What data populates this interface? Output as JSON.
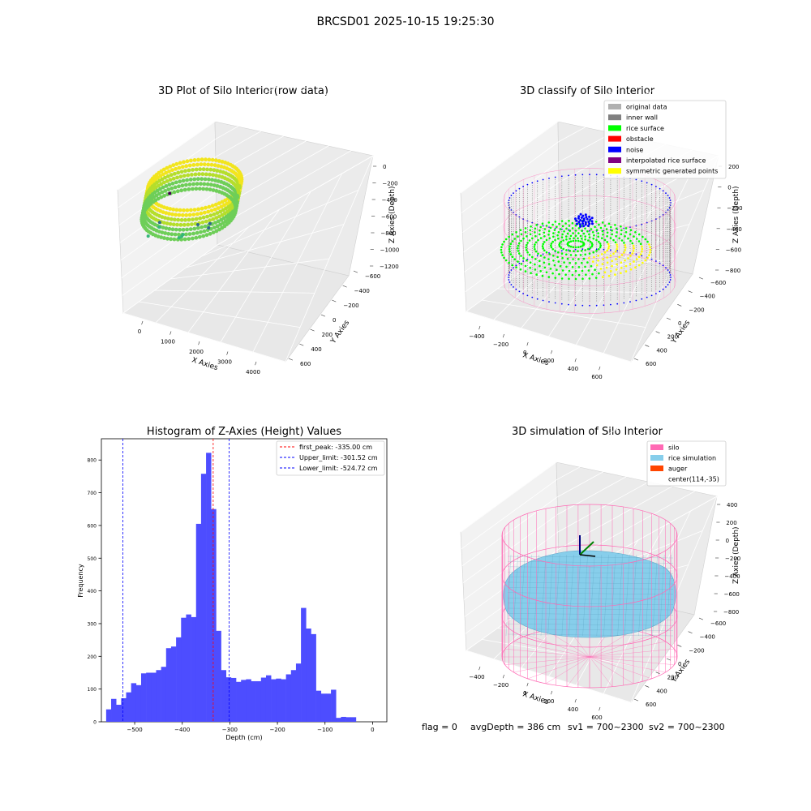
{
  "figure": {
    "suptitle": "BRCSD01 2025-10-15 19:25:30",
    "footer": {
      "flag": "flag = 0",
      "avg_depth": "avgDepth = 386 cm",
      "sv1": "sv1 = 700~2300",
      "sv2": "sv2 = 700~2300"
    }
  },
  "chart_data": [
    {
      "type": "scatter",
      "projection": "3d",
      "title": "3D Plot of Silo Interior(row data)",
      "xlabel": "X Axies",
      "ylabel": "Y Axies",
      "zlabel": "Z Axies (Depth)",
      "x_ticks": [
        "0",
        "1000",
        "2000",
        "3000",
        "4000"
      ],
      "y_ticks": [
        "600",
        "400",
        "200",
        "0",
        "−200",
        "−400",
        "−600"
      ],
      "z_ticks": [
        "0",
        "−200",
        "−400",
        "−600",
        "−800",
        "−1000",
        "−1200"
      ],
      "colormap": "viridis",
      "outlier_points": [
        {
          "x": 700,
          "y": 300,
          "z": -280
        },
        {
          "x": 900,
          "y": 250,
          "z": -340
        },
        {
          "x": 1050,
          "y": 200,
          "z": -400
        },
        {
          "x": 300,
          "y": -50,
          "z": -430
        },
        {
          "x": 800,
          "y": -100,
          "z": -600
        },
        {
          "x": 820,
          "y": -100,
          "z": -650
        },
        {
          "x": 2000,
          "y": 0,
          "z": -700
        },
        {
          "x": 2800,
          "y": -200,
          "z": -850
        },
        {
          "x": 2850,
          "y": -200,
          "z": -900
        },
        {
          "x": 1800,
          "y": -400,
          "z": -1200
        }
      ]
    },
    {
      "type": "scatter",
      "projection": "3d",
      "title": "3D classify of Silo Interior",
      "xlabel": "X Axies",
      "ylabel": "Y Axies",
      "zlabel": "Z Axies (Depth)",
      "x_ticks": [
        "−400",
        "−200",
        "0",
        "200",
        "400",
        "600"
      ],
      "y_ticks": [
        "600",
        "400",
        "200",
        "0",
        "−200",
        "−400",
        "−600"
      ],
      "z_ticks": [
        "200",
        "0",
        "−200",
        "−400",
        "−600",
        "−800"
      ],
      "legend_position": "top-right",
      "legend": [
        {
          "label": "original data",
          "color": "#b0b0b0"
        },
        {
          "label": "inner wall",
          "color": "#808080"
        },
        {
          "label": "rice surface",
          "color": "#00ff00"
        },
        {
          "label": "obstacle",
          "color": "#ff0000"
        },
        {
          "label": "noise",
          "color": "#0000ff"
        },
        {
          "label": "interpolated rice surface",
          "color": "#800080"
        },
        {
          "label": "symmetric generated points",
          "color": "#ffff00"
        }
      ]
    },
    {
      "type": "bar",
      "title": "Histogram of Z-Axies (Height) Values",
      "xlabel": "Depth (cm)",
      "ylabel": "Frequency",
      "xlim": [
        -570,
        30
      ],
      "ylim": [
        0,
        865
      ],
      "x_ticks": [
        -500,
        -400,
        -300,
        -200,
        -100,
        0
      ],
      "x_tick_labels": [
        "−500",
        "−400",
        "−300",
        "−200",
        "−100",
        "0"
      ],
      "y_ticks": [
        0,
        100,
        200,
        300,
        400,
        500,
        600,
        700,
        800
      ],
      "bar_color": "#4d4dff",
      "bin_width": 10.5,
      "bins_start": -560,
      "values": [
        38,
        70,
        52,
        72,
        90,
        118,
        112,
        148,
        150,
        150,
        158,
        168,
        225,
        230,
        258,
        318,
        328,
        320,
        605,
        758,
        822,
        650,
        278,
        158,
        136,
        134,
        122,
        128,
        130,
        124,
        124,
        135,
        142,
        130,
        132,
        130,
        145,
        158,
        178,
        348,
        285,
        268,
        95,
        86,
        86,
        98,
        12,
        15,
        14,
        14
      ],
      "vlines": [
        {
          "x": -335.0,
          "color": "#ff0000",
          "label": "first_peak: -335.00 cm"
        },
        {
          "x": -301.52,
          "color": "#0000ff",
          "label": "Upper_limit: -301.52 cm"
        },
        {
          "x": -524.72,
          "color": "#0000ff",
          "label": "Lower_limit: -524.72 cm"
        }
      ],
      "legend_position": "top-right"
    },
    {
      "type": "area",
      "projection": "3d",
      "title": "3D simulation of Silo Interior",
      "xlabel": "X Axies",
      "ylabel": "Y Axies",
      "zlabel": "Z Axies (Depth)",
      "x_ticks": [
        "−400",
        "−200",
        "0",
        "200",
        "400",
        "600"
      ],
      "y_ticks": [
        "600",
        "400",
        "200",
        "0",
        "−200",
        "−400",
        "−600"
      ],
      "z_ticks": [
        "400",
        "200",
        "0",
        "−200",
        "−400",
        "−600",
        "−800"
      ],
      "legend_position": "top-right",
      "legend": [
        {
          "label": "silo",
          "color": "#ff69b4"
        },
        {
          "label": "rice simulation",
          "color": "#87ceeb"
        },
        {
          "label": "auger",
          "color": "#ff4500"
        },
        {
          "label": "center(114,-35)",
          "color": ""
        }
      ]
    }
  ]
}
